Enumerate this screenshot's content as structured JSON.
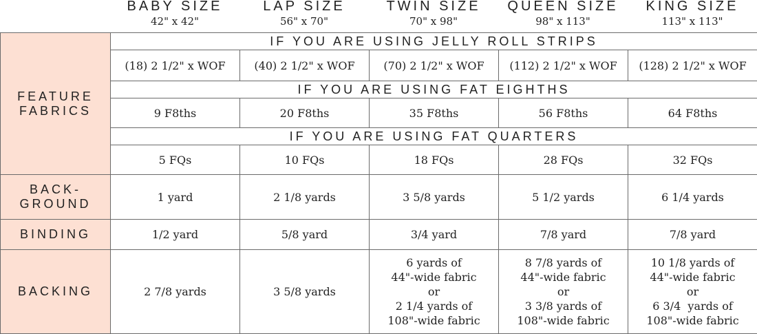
{
  "columns": [
    {
      "name": "BABY SIZE",
      "dims": "42\" x 42\""
    },
    {
      "name": "LAP SIZE",
      "dims": "56\" x 70\""
    },
    {
      "name": "TWIN SIZE",
      "dims": "70\" x 98\""
    },
    {
      "name": "QUEEN SIZE",
      "dims": "98\" x 113\""
    },
    {
      "name": "KING SIZE",
      "dims": "113\" x 113\""
    }
  ],
  "feature_fabrics": {
    "label": [
      "FEATURE",
      "FABRICS"
    ],
    "sections": [
      {
        "heading": "IF YOU ARE USING JELLY ROLL STRIPS",
        "values": [
          "(18) 2 1/2\" x WOF",
          "(40) 2 1/2\" x WOF",
          "(70) 2 1/2\" x WOF",
          "(112) 2 1/2\" x WOF",
          "(128) 2 1/2\" x WOF"
        ]
      },
      {
        "heading": "IF YOU ARE USING FAT EIGHTHS",
        "values": [
          "9 F8ths",
          "20 F8ths",
          "35 F8ths",
          "56 F8ths",
          "64 F8ths"
        ]
      },
      {
        "heading": "IF YOU ARE USING FAT QUARTERS",
        "values": [
          "5 FQs",
          "10 FQs",
          "18 FQs",
          "28 FQs",
          "32 FQs"
        ]
      }
    ]
  },
  "rows": [
    {
      "label": [
        "BACK-",
        "GROUND"
      ],
      "values": [
        [
          "1 yard"
        ],
        [
          "2 1/8 yards"
        ],
        [
          "3 5/8 yards"
        ],
        [
          "5 1/2 yards"
        ],
        [
          "6 1/4 yards"
        ]
      ]
    },
    {
      "label": [
        "BINDING"
      ],
      "values": [
        [
          "1/2 yard"
        ],
        [
          "5/8 yard"
        ],
        [
          "3/4 yard"
        ],
        [
          "7/8 yard"
        ],
        [
          "7/8 yard"
        ]
      ]
    },
    {
      "label": [
        "BACKING"
      ],
      "values": [
        [
          "2 7/8 yards"
        ],
        [
          "3 5/8 yards"
        ],
        [
          "6 yards of",
          "44\"-wide fabric",
          "or",
          "2 1/4 yards of",
          "108\"-wide fabric"
        ],
        [
          "8 7/8 yards of",
          "44\"-wide fabric",
          "or",
          "3 3/8 yards of",
          "108\"-wide fabric"
        ],
        [
          "10 1/8 yards of",
          "44\"-wide fabric",
          "or",
          "6 3/4  yards of",
          "108\"-wide fabric"
        ]
      ]
    }
  ]
}
